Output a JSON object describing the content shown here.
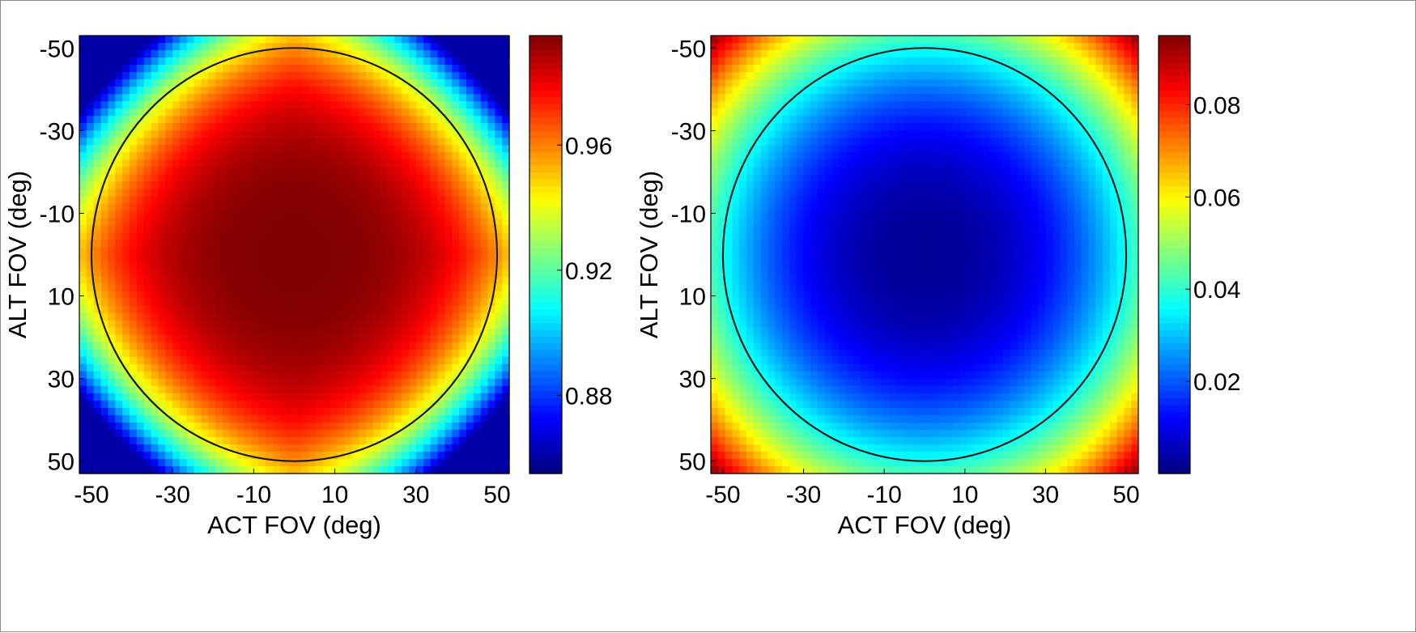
{
  "chart_data": [
    {
      "type": "heatmap",
      "xlabel": "ACT FOV (deg)",
      "ylabel": "ALT FOV (deg)",
      "xlim": [
        -53,
        53
      ],
      "ylim": [
        -53,
        53
      ],
      "y_reversed": true,
      "x_ticks": [
        "-50",
        "-30",
        "-10",
        "10",
        "30",
        "50"
      ],
      "y_ticks": [
        "-50",
        "-30",
        "-10",
        "10",
        "30",
        "50"
      ],
      "x_tick_values": [
        -50,
        -30,
        -10,
        10,
        30,
        50
      ],
      "y_tick_values": [
        -50,
        -30,
        -10,
        10,
        30,
        50
      ],
      "colormap": "jet",
      "color_range": [
        0.855,
        0.995
      ],
      "colorbar_ticks": [
        "0.88",
        "0.92",
        "0.96"
      ],
      "colorbar_tick_values": [
        0.88,
        0.92,
        0.96
      ],
      "center_value": 0.995,
      "corner_value": 0.86,
      "overlay_circle": {
        "center": [
          0,
          0
        ],
        "radius": 50,
        "color": "#1a1a1a"
      }
    },
    {
      "type": "heatmap",
      "xlabel": "ACT FOV (deg)",
      "ylabel": "ALT FOV (deg)",
      "xlim": [
        -53,
        53
      ],
      "ylim": [
        -53,
        53
      ],
      "y_reversed": true,
      "x_ticks": [
        "-50",
        "-30",
        "-10",
        "10",
        "30",
        "50"
      ],
      "y_ticks": [
        "-50",
        "-30",
        "-10",
        "10",
        "30",
        "50"
      ],
      "x_tick_values": [
        -50,
        -30,
        -10,
        10,
        30,
        50
      ],
      "y_tick_values": [
        -50,
        -30,
        -10,
        10,
        30,
        50
      ],
      "colormap": "jet",
      "color_range": [
        0.0,
        0.095
      ],
      "colorbar_ticks": [
        "0.02",
        "0.04",
        "0.06",
        "0.08"
      ],
      "colorbar_tick_values": [
        0.02,
        0.04,
        0.06,
        0.08
      ],
      "center_value": 0.002,
      "corner_value": 0.095,
      "overlay_circle": {
        "center": [
          0,
          0
        ],
        "radius": 50,
        "color": "#1a1a1a"
      }
    }
  ]
}
